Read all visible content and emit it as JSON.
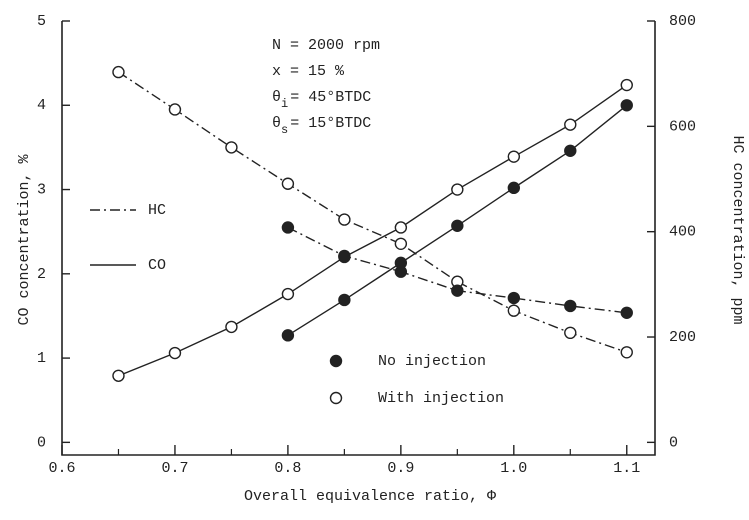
{
  "chart_data": {
    "type": "line",
    "x_label": "Overall equivalence ratio, Φ",
    "y_label": "CO concentration, %",
    "y2_label": "HC concentration, ppm",
    "annotations": [
      {
        "text": "N = 2000 rpm"
      },
      {
        "text": "x = 15 %"
      },
      {
        "symbol": "θ",
        "sub": "i",
        "text": "= 45°BTDC"
      },
      {
        "symbol": "θ",
        "sub": "s",
        "text": "= 15°BTDC"
      }
    ],
    "legend_lines": [
      {
        "label": "HC",
        "linestyle": "dashed"
      },
      {
        "label": "CO",
        "linestyle": "solid"
      }
    ],
    "legend_markers": [
      {
        "label": "No injection",
        "marker": "filled"
      },
      {
        "label": "With injection",
        "marker": "open"
      }
    ],
    "xlim": [
      0.6,
      1.125
    ],
    "xticks": [
      0.6,
      0.7,
      0.8,
      0.9,
      {
        "value": 1,
        "label": "1.0"
      },
      1.1
    ],
    "ylim": [
      -0.15,
      5
    ],
    "yticks": [
      0,
      1,
      2,
      3,
      4,
      5
    ],
    "y2lim": [
      -24,
      800
    ],
    "y2ticks": [
      0,
      200,
      400,
      600,
      800
    ],
    "color": "#222222",
    "series": [
      {
        "axis": "y",
        "linestyle": "solid",
        "marker": "open",
        "x": [
          0.65,
          0.7,
          0.75,
          0.8,
          0.85,
          0.9,
          0.95,
          1.0,
          1.05,
          1.1
        ],
        "values": [
          0.79,
          1.06,
          1.37,
          1.76,
          2.2,
          2.55,
          3.0,
          3.39,
          3.77,
          4.24
        ]
      },
      {
        "axis": "y",
        "linestyle": "solid",
        "marker": "filled",
        "x": [
          0.8,
          0.85,
          0.9,
          0.95,
          1.0,
          1.05,
          1.1
        ],
        "values": [
          1.27,
          1.69,
          2.13,
          2.57,
          3.02,
          3.46,
          4.0
        ]
      },
      {
        "axis": "y2",
        "linestyle": "dashed",
        "marker": "open",
        "x": [
          0.65,
          0.7,
          0.75,
          0.8,
          0.85,
          0.9,
          0.95,
          1.0,
          1.05,
          1.1
        ],
        "values": [
          703,
          632,
          560,
          491,
          423,
          377,
          305,
          250,
          208,
          171
        ]
      },
      {
        "axis": "y2",
        "linestyle": "dashed",
        "marker": "filled",
        "x": [
          0.8,
          0.85,
          0.9,
          0.95,
          1.0,
          1.05,
          1.1
        ],
        "values": [
          408,
          354,
          324,
          288,
          274,
          259,
          246
        ]
      }
    ]
  }
}
